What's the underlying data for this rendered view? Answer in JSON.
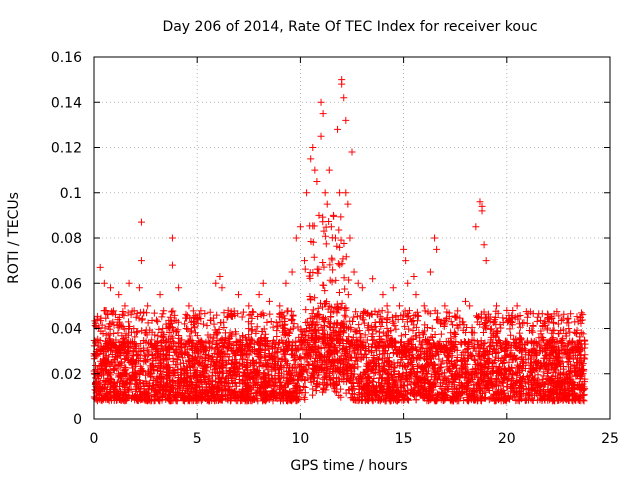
{
  "chart_data": {
    "type": "scatter",
    "title": "Day 206 of 2014, Rate Of TEC Index for receiver kouc",
    "xlabel": "GPS time / hours",
    "ylabel": "ROTI / TECUs",
    "xlim": [
      0,
      25
    ],
    "ylim": [
      0,
      0.16
    ],
    "xticks": [
      "0",
      "5",
      "10",
      "15",
      "20",
      "25"
    ],
    "yticks": [
      "0",
      "0.02",
      "0.04",
      "0.06",
      "0.08",
      "0.1",
      "0.12",
      "0.14",
      "0.16"
    ],
    "grid": true,
    "marker": "+",
    "color": "#ff0000",
    "x_extent": [
      0,
      23.8
    ],
    "baseline_range": [
      0.008,
      0.035
    ],
    "series": [
      {
        "x": [
          0.3,
          0.5,
          0.8,
          1.2,
          1.5,
          1.7,
          2.2,
          2.3,
          2.3,
          2.6,
          3.2,
          3.7,
          3.8,
          3.8,
          4.1,
          4.6,
          5.0,
          5.9,
          6.1,
          6.2,
          6.5,
          7.0,
          7.5,
          8.0,
          8.2,
          8.5,
          9.0,
          9.3,
          9.6,
          9.8,
          10.0,
          10.2,
          10.3,
          10.5,
          10.6,
          10.7,
          10.8,
          10.9,
          11.0,
          11.0,
          11.1,
          11.2,
          11.3,
          11.4,
          11.5,
          11.6,
          11.7,
          11.8,
          11.9,
          12.0,
          12.0,
          12.1,
          12.2,
          12.2,
          12.3,
          12.4,
          12.5,
          12.6,
          12.8,
          13.0,
          13.5,
          14.0,
          14.2,
          14.5,
          14.8,
          15.0,
          15.1,
          15.2,
          15.5,
          15.6,
          16.0,
          16.3,
          16.5,
          16.6,
          17.0,
          17.5,
          18.0,
          18.2,
          18.5,
          18.7,
          18.8,
          18.8,
          18.9,
          19.0,
          19.5,
          20.0,
          20.5,
          21.0,
          21.5,
          22.0,
          22.5,
          23.0,
          23.5
        ],
        "y": [
          0.067,
          0.06,
          0.058,
          0.055,
          0.05,
          0.06,
          0.058,
          0.087,
          0.07,
          0.05,
          0.055,
          0.045,
          0.08,
          0.068,
          0.058,
          0.05,
          0.045,
          0.06,
          0.063,
          0.058,
          0.048,
          0.055,
          0.05,
          0.055,
          0.06,
          0.052,
          0.05,
          0.06,
          0.065,
          0.08,
          0.085,
          0.07,
          0.1,
          0.115,
          0.12,
          0.11,
          0.105,
          0.09,
          0.14,
          0.125,
          0.135,
          0.1,
          0.095,
          0.11,
          0.085,
          0.09,
          0.08,
          0.128,
          0.1,
          0.15,
          0.148,
          0.142,
          0.132,
          0.1,
          0.095,
          0.08,
          0.118,
          0.065,
          0.06,
          0.058,
          0.062,
          0.055,
          0.05,
          0.058,
          0.05,
          0.075,
          0.07,
          0.06,
          0.063,
          0.055,
          0.05,
          0.065,
          0.08,
          0.075,
          0.05,
          0.045,
          0.052,
          0.05,
          0.085,
          0.096,
          0.094,
          0.092,
          0.077,
          0.07,
          0.05,
          0.048,
          0.05,
          0.045,
          0.045,
          0.046,
          0.042,
          0.04,
          0.033
        ]
      }
    ]
  }
}
